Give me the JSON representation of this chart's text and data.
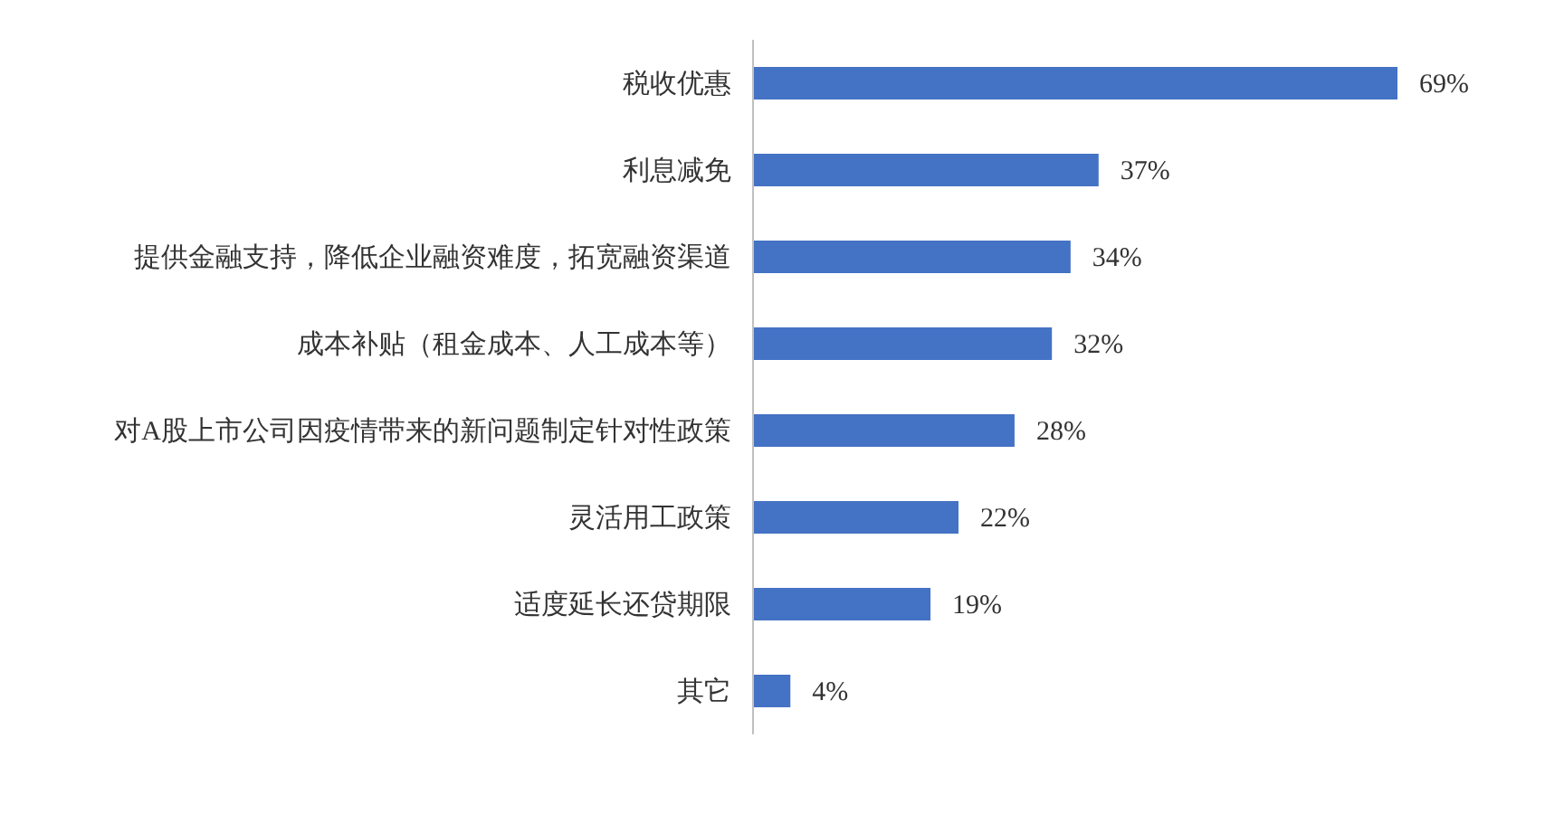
{
  "chart_data": {
    "type": "bar",
    "orientation": "horizontal",
    "categories": [
      "税收优惠",
      "利息减免",
      "提供金融支持，降低企业融资难度，拓宽融资渠道",
      "成本补贴（租金成本、人工成本等）",
      "对A股上市公司因疫情带来的新问题制定针对性政策",
      "灵活用工政策",
      "适度延长还贷期限",
      "其它"
    ],
    "values": [
      69,
      37,
      34,
      32,
      28,
      22,
      19,
      4
    ],
    "value_labels": [
      "69%",
      "37%",
      "34%",
      "32%",
      "28%",
      "22%",
      "19%",
      "4%"
    ],
    "color": "#4472c4"
  }
}
